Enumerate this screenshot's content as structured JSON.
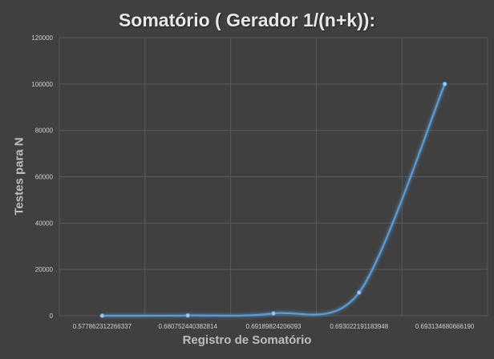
{
  "chart_data": {
    "type": "line",
    "title": "Somatório ( Gerador 1/(n+k)):",
    "xlabel": "Registro de Somatório",
    "ylabel": "Testes para N",
    "categories": [
      "0.577862312266337",
      "0.680752440382814",
      "0.69189824206093",
      "0.693022191183948",
      "0.693134680666190"
    ],
    "series": [
      {
        "values": [
          10,
          100,
          1000,
          10000,
          100000
        ]
      }
    ],
    "ylim": [
      0,
      120000
    ],
    "yticks": [
      0,
      20000,
      40000,
      60000,
      80000,
      100000,
      120000
    ],
    "grid": true,
    "legend": "none",
    "colors": {
      "line": "#5b9bd5",
      "grid": "#595959",
      "background": "#404040"
    }
  }
}
